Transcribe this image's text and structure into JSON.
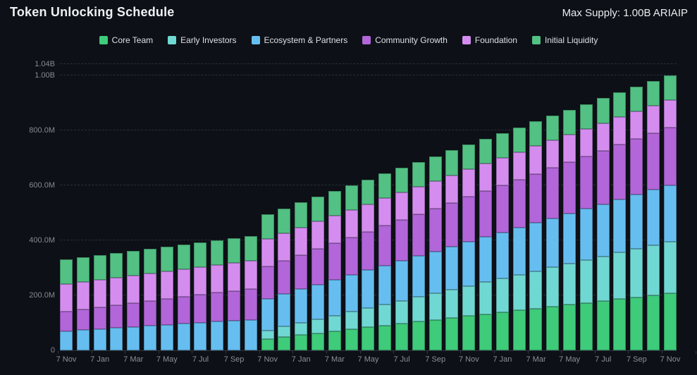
{
  "header": {
    "title": "Token Unlocking Schedule",
    "max_supply": "Max Supply: 1.00B ARIAIP"
  },
  "colors": {
    "background": "#0d1016",
    "grid": "#2a303a",
    "axis_text": "#848b95"
  },
  "chart_data": {
    "type": "bar",
    "stacked": true,
    "title": "Token Unlocking Schedule",
    "values_unit": "tokens (millions)",
    "grid": "dashed horizontal",
    "legend_position": "top center",
    "x_label_every": 2,
    "categories": [
      "7 Nov",
      "7 Dec",
      "7 Jan",
      "7 Feb",
      "7 Mar",
      "7 Apr",
      "7 May",
      "7 Jun",
      "7 Jul",
      "7 Aug",
      "7 Sep",
      "7 Oct",
      "7 Nov",
      "7 Dec",
      "7 Jan",
      "7 Feb",
      "7 Mar",
      "7 Apr",
      "7 May",
      "7 Jun",
      "7 Jul",
      "7 Aug",
      "7 Sep",
      "7 Oct",
      "7 Nov",
      "7 Dec",
      "7 Jan",
      "7 Feb",
      "7 Mar",
      "7 Apr",
      "7 May",
      "7 Jun",
      "7 Jul",
      "7 Aug",
      "7 Sep",
      "7 Oct",
      "7 Nov"
    ],
    "y_axis": {
      "max": 1050,
      "ticks": [
        {
          "label": "1.04B",
          "value": 1040
        },
        {
          "label": "1.00B",
          "value": 1000
        },
        {
          "label": "800.0M",
          "value": 800
        },
        {
          "label": "600.0M",
          "value": 600
        },
        {
          "label": "400.0M",
          "value": 400
        },
        {
          "label": "200.0M",
          "value": 200
        },
        {
          "label": "0",
          "value": 0
        }
      ]
    },
    "series": [
      {
        "key": "core-team",
        "name": "Core Team",
        "color": "#3ecb7a",
        "values": [
          0,
          0,
          0,
          0,
          0,
          0,
          0,
          0,
          0,
          0,
          0,
          0,
          42,
          48.9,
          55.8,
          62.6,
          69.5,
          76.4,
          83.3,
          90.1,
          97,
          103.9,
          110.8,
          117.6,
          124.5,
          131.4,
          138.3,
          145.1,
          152,
          158.9,
          165.8,
          172.6,
          179.5,
          186.4,
          193.3,
          200.1,
          207
        ]
      },
      {
        "key": "early-investors",
        "name": "Early Investors",
        "color": "#70d8d2",
        "values": [
          0,
          0,
          0,
          0,
          0,
          0,
          0,
          0,
          0,
          0,
          0,
          0,
          31,
          37.5,
          44.1,
          50.6,
          57.2,
          63.7,
          70.3,
          76.8,
          83.3,
          89.9,
          96.4,
          103,
          109.5,
          116.1,
          122.6,
          129.2,
          135.7,
          142.2,
          148.8,
          155.3,
          161.9,
          168.4,
          175,
          181.5,
          188
        ]
      },
      {
        "key": "ecosystem-partners",
        "name": "Ecosystem & Partners",
        "color": "#66bef0",
        "values": [
          70,
          73.8,
          77.5,
          81.3,
          85,
          88.8,
          92.5,
          96.3,
          100,
          103.8,
          107.5,
          111.3,
          115,
          118.8,
          122.5,
          126.3,
          130,
          133.8,
          137.5,
          141.3,
          145,
          148.8,
          152.5,
          156.3,
          160,
          163.8,
          167.5,
          171.3,
          175,
          178.8,
          182.5,
          186.3,
          190,
          193.8,
          197.5,
          201.3,
          205
        ]
      },
      {
        "key": "community-growth",
        "name": "Community Growth",
        "color": "#b266d9",
        "values": [
          70,
          73.9,
          77.8,
          81.7,
          85.6,
          89.4,
          93.3,
          97.2,
          101.1,
          105,
          108.9,
          112.8,
          116.7,
          120.6,
          124.4,
          128.3,
          132.2,
          136.1,
          140,
          143.9,
          147.8,
          151.7,
          155.6,
          159.4,
          163.3,
          167.2,
          171.1,
          175,
          178.9,
          182.8,
          186.7,
          190.6,
          194.4,
          198.3,
          202.2,
          206.1,
          210
        ]
      },
      {
        "key": "foundation",
        "name": "Foundation",
        "color": "#d48def",
        "values": [
          100,
          100,
          100,
          100,
          100,
          100,
          100,
          100,
          100,
          100,
          100,
          100,
          100,
          100,
          100,
          100,
          100,
          100,
          100,
          100,
          100,
          100,
          100,
          100,
          100,
          100,
          100,
          100,
          100,
          100,
          100,
          100,
          100,
          100,
          100,
          100,
          100
        ]
      },
      {
        "key": "initial-liquidity",
        "name": "Initial Liquidity",
        "color": "#52c183",
        "values": [
          90,
          90,
          90,
          90,
          90,
          90,
          90,
          90,
          90,
          90,
          90,
          90,
          90,
          90,
          90,
          90,
          90,
          90,
          90,
          90,
          90,
          90,
          90,
          90,
          90,
          90,
          90,
          90,
          90,
          90,
          90,
          90,
          90,
          90,
          90,
          90,
          90
        ]
      }
    ]
  }
}
